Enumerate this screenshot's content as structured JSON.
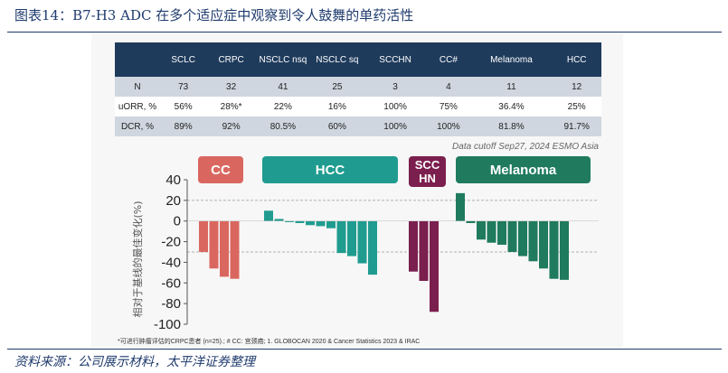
{
  "title": "图表14：B7-H3 ADC 在多个适应症中观察到令人鼓舞的单药活性",
  "table": {
    "headers": [
      "",
      "SCLC",
      "CRPC",
      "NSCLC nsq",
      "NSCLC sq",
      "SCCHN",
      "CC#",
      "Melanoma",
      "HCC"
    ],
    "rows": [
      {
        "label": "N",
        "values": [
          "73",
          "32",
          "41",
          "25",
          "3",
          "4",
          "11",
          "12"
        ]
      },
      {
        "label": "uORR, %",
        "values": [
          "56%",
          "28%*",
          "22%",
          "16%",
          "100%",
          "75%",
          "36.4%",
          "25%"
        ]
      },
      {
        "label": "DCR, %",
        "values": [
          "89%",
          "92%",
          "80.5%",
          "60%",
          "100%",
          "100%",
          "81.8%",
          "91.7%"
        ]
      }
    ]
  },
  "cutoff_note": "Data cutoff Sep27, 2024 ESMO Asia",
  "footnote": "*可进行肿瘤评估的CRPC患者 (n=25).; # CC: 宫颈癌;  1. GLOBOCAN 2020 & Cancer Statistics 2023 & IRAC",
  "source": "资料来源：公司展示材料，太平洋证券整理",
  "chart_data": {
    "type": "bar",
    "title": "",
    "xlabel": "",
    "ylabel": "相对于基线的最佳变化(%)",
    "ylim": [
      -100,
      40
    ],
    "yticks": [
      40,
      20,
      0,
      -20,
      -40,
      -60,
      -80,
      -100
    ],
    "reference_lines": [
      20,
      -30
    ],
    "groups": [
      {
        "name": "CC",
        "color": "#d9675f",
        "values": [
          -30,
          -46,
          -54,
          -56
        ]
      },
      {
        "name": "HCC",
        "color": "#1f9c8f",
        "values": [
          10,
          2,
          -1,
          -2,
          -4,
          -5,
          -7,
          -31,
          -34,
          -41,
          -52
        ]
      },
      {
        "name": "SCC HN",
        "color": "#7b1f4e",
        "values": [
          -49,
          -58,
          -88
        ]
      },
      {
        "name": "Melanoma",
        "color": "#1f7a5e",
        "values": [
          27,
          -2,
          -18,
          -21,
          -23,
          -30,
          -34,
          -39,
          -46,
          -56,
          -57
        ]
      }
    ]
  }
}
